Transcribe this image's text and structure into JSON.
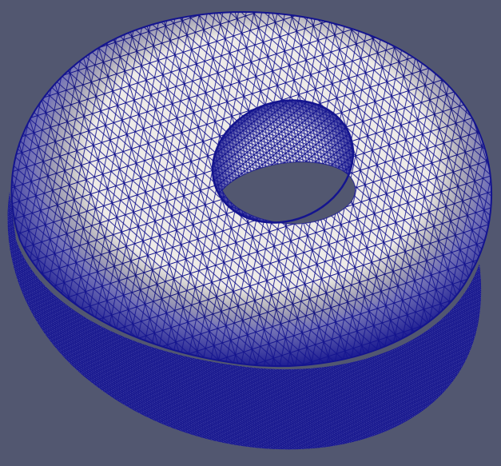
{
  "scene": {
    "object": "torus",
    "representation": "surface-with-edges",
    "colors": {
      "background": "#525770",
      "surface": "#eeebe8",
      "edges": "#14148f",
      "hole_background": "#525770"
    }
  }
}
